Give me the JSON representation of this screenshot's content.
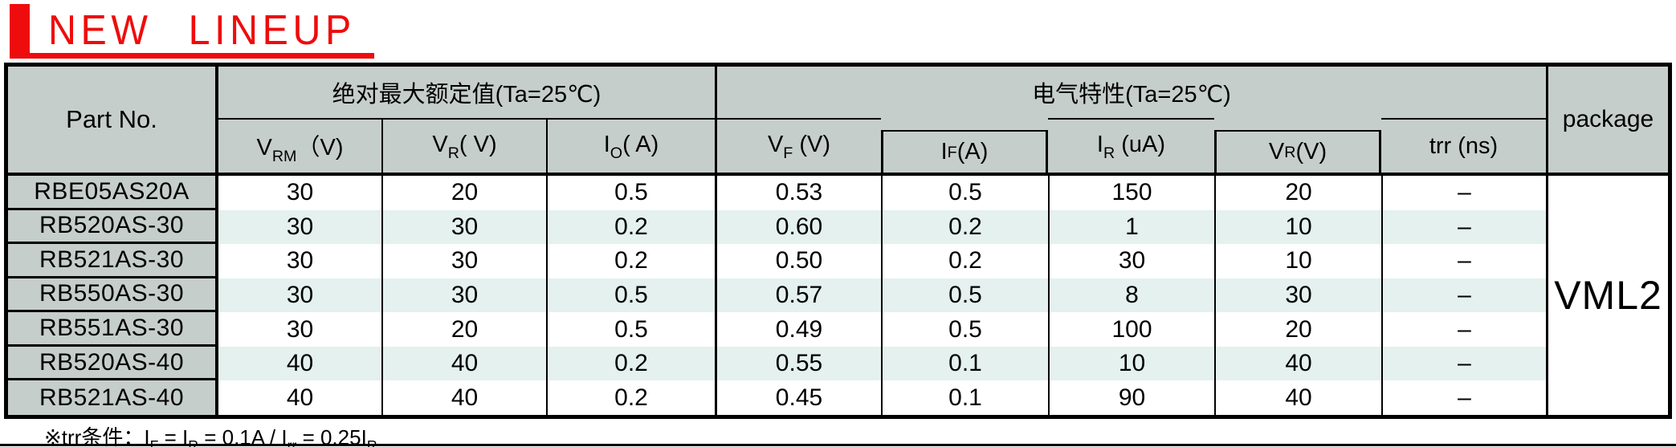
{
  "banner": {
    "title": "NEW LINEUP",
    "accent_color": "#ee0c0c"
  },
  "table": {
    "part_no_header": "Part No.",
    "package_header": "package",
    "package_value": "VML2",
    "groups": [
      {
        "label": "绝对最大额定值(Ta=25℃)",
        "span": 3
      },
      {
        "label": "电气特性(Ta=25℃)",
        "span": 5
      }
    ],
    "columns": [
      {
        "id": "vrm",
        "inset": false,
        "segments": [
          {
            "t": "V"
          },
          {
            "t": "RM",
            "sub": true
          },
          {
            "t": "（V)"
          }
        ]
      },
      {
        "id": "vr-max",
        "inset": false,
        "segments": [
          {
            "t": "V"
          },
          {
            "t": "R",
            "sub": true
          },
          {
            "t": "( V)"
          }
        ]
      },
      {
        "id": "io",
        "inset": false,
        "segments": [
          {
            "t": "I"
          },
          {
            "t": "O",
            "sub": true
          },
          {
            "t": "( A)"
          }
        ]
      },
      {
        "id": "vf",
        "inset": false,
        "segments": [
          {
            "t": "V"
          },
          {
            "t": "F",
            "sub": true
          },
          {
            "t": " (V)"
          }
        ]
      },
      {
        "id": "if-condition",
        "inset": true,
        "segments": [
          {
            "t": "I"
          },
          {
            "t": "F",
            "sub": true
          },
          {
            "t": " (A)"
          }
        ]
      },
      {
        "id": "ir",
        "inset": false,
        "segments": [
          {
            "t": "I"
          },
          {
            "t": "R",
            "sub": true
          },
          {
            "t": " (uA)"
          }
        ]
      },
      {
        "id": "vr-condition",
        "inset": true,
        "segments": [
          {
            "t": "V"
          },
          {
            "t": "R",
            "sub": true
          },
          {
            "t": " (V)"
          }
        ]
      },
      {
        "id": "trr",
        "inset": false,
        "segments": [
          {
            "t": "trr (ns)"
          }
        ]
      }
    ],
    "rows": [
      {
        "part_no": "RBE05AS20A",
        "values": [
          "30",
          "20",
          "0.5",
          "0.53",
          "0.5",
          "150",
          "20",
          "–"
        ]
      },
      {
        "part_no": "RB520AS-30",
        "values": [
          "30",
          "30",
          "0.2",
          "0.60",
          "0.2",
          "1",
          "10",
          "–"
        ]
      },
      {
        "part_no": "RB521AS-30",
        "values": [
          "30",
          "30",
          "0.2",
          "0.50",
          "0.2",
          "30",
          "10",
          "–"
        ]
      },
      {
        "part_no": "RB550AS-30",
        "values": [
          "30",
          "30",
          "0.5",
          "0.57",
          "0.5",
          "8",
          "30",
          "–"
        ]
      },
      {
        "part_no": "RB551AS-30",
        "values": [
          "30",
          "20",
          "0.5",
          "0.49",
          "0.5",
          "100",
          "20",
          "–"
        ]
      },
      {
        "part_no": "RB520AS-40",
        "values": [
          "40",
          "40",
          "0.2",
          "0.55",
          "0.1",
          "10",
          "40",
          "–"
        ]
      },
      {
        "part_no": "RB521AS-40",
        "values": [
          "40",
          "40",
          "0.2",
          "0.45",
          "0.1",
          "90",
          "40",
          "–"
        ]
      }
    ]
  },
  "footnote": {
    "segments": [
      {
        "t": "※trr条件：I"
      },
      {
        "t": "F",
        "sub": true
      },
      {
        "t": " = I"
      },
      {
        "t": "R",
        "sub": true
      },
      {
        "t": " = 0.1A / I"
      },
      {
        "t": "rr",
        "sub": true
      },
      {
        "t": " = 0.25I"
      },
      {
        "t": "R",
        "sub": true
      }
    ]
  },
  "colors": {
    "accent_red": "#ee0c0c",
    "header_bg": "#c6cecb",
    "stripe_bg": "#e4f1ee",
    "table_border": "#000000"
  }
}
